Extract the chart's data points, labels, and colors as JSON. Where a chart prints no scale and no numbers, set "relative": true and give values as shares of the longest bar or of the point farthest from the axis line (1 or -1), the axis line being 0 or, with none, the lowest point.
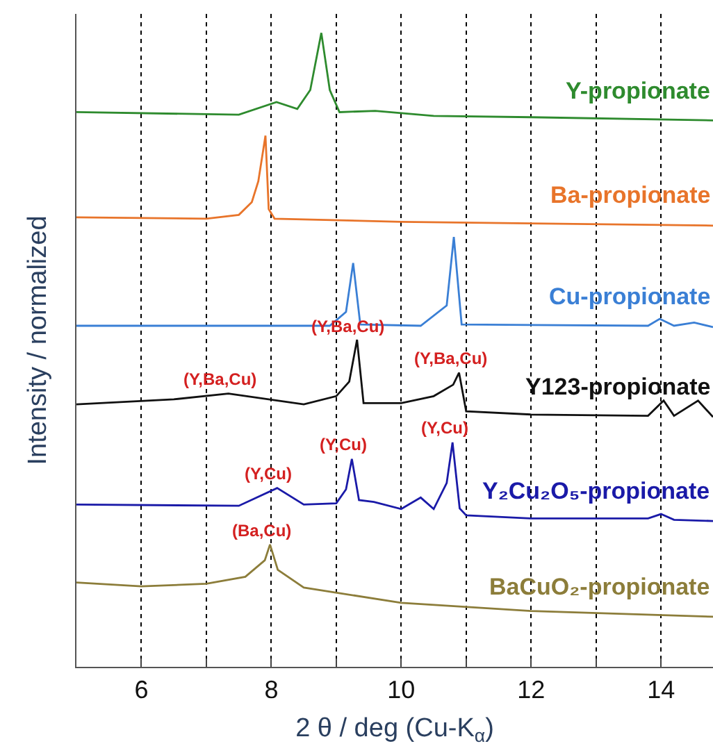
{
  "chart_data": {
    "type": "line",
    "relative": true,
    "xlabel": "2 θ / deg (Cu-K$_{α}$)",
    "ylabel": "Intensity / normalized",
    "xlim": [
      5,
      14.8
    ],
    "xticks": [
      6,
      {
        "value": 7,
        "label": null
      },
      8,
      {
        "value": 9,
        "label": null
      },
      10,
      {
        "value": 11,
        "label": null
      },
      12,
      {
        "value": 13,
        "label": null
      },
      14
    ],
    "grid": "x",
    "legend": false,
    "tick_labels": "x",
    "marker": "none",
    "line_style": "solid",
    "series": [
      {
        "name": "Y-propionate",
        "color": "#2e8b2e",
        "x": [
          5,
          7.5,
          8.08,
          8.4,
          8.6,
          8.77,
          8.9,
          9.05,
          9.6,
          10.5,
          12,
          14.8
        ],
        "values": [
          0.875,
          0.871,
          0.891,
          0.88,
          0.91,
          1.0,
          0.91,
          0.875,
          0.877,
          0.869,
          0.867,
          0.862
        ]
      },
      {
        "name": "Ba-propionate",
        "color": "#e8742a",
        "x": [
          5,
          7,
          7.5,
          7.7,
          7.8,
          7.91,
          7.96,
          8.05,
          10,
          14.8
        ],
        "values": [
          0.709,
          0.707,
          0.713,
          0.733,
          0.766,
          0.838,
          0.722,
          0.707,
          0.702,
          0.696
        ]
      },
      {
        "name": "Cu-propionate",
        "color": "#3a7fd5",
        "x": [
          5,
          8.9,
          9.15,
          9.26,
          9.37,
          10.3,
          10.7,
          10.81,
          10.93,
          13.8,
          13.98,
          14.2,
          14.51,
          14.8
        ],
        "values": [
          0.538,
          0.538,
          0.56,
          0.637,
          0.54,
          0.538,
          0.57,
          0.678,
          0.54,
          0.538,
          0.549,
          0.538,
          0.543,
          0.536
        ]
      },
      {
        "name": "Y123-propionate",
        "color": "#111111",
        "x": [
          5,
          6.5,
          7.34,
          8.5,
          9.0,
          9.2,
          9.32,
          9.42,
          10.0,
          10.5,
          10.8,
          10.89,
          11.0,
          12,
          13.8,
          14.04,
          14.2,
          14.57,
          14.8
        ],
        "values": [
          0.414,
          0.422,
          0.431,
          0.414,
          0.427,
          0.45,
          0.516,
          0.416,
          0.416,
          0.427,
          0.445,
          0.464,
          0.403,
          0.398,
          0.396,
          0.42,
          0.396,
          0.42,
          0.394
        ]
      },
      {
        "name": "Y₂Cu₂O₅-propionate",
        "color": "#1a1aa8",
        "x": [
          5,
          7.5,
          8.09,
          8.5,
          9.0,
          9.15,
          9.24,
          9.35,
          9.58,
          10.0,
          10.3,
          10.5,
          10.7,
          10.79,
          10.9,
          11,
          12,
          13.8,
          14,
          14.2,
          14.8
        ],
        "values": [
          0.256,
          0.254,
          0.282,
          0.256,
          0.258,
          0.28,
          0.328,
          0.263,
          0.26,
          0.249,
          0.267,
          0.249,
          0.29,
          0.354,
          0.25,
          0.239,
          0.234,
          0.234,
          0.241,
          0.232,
          0.23
        ]
      },
      {
        "name": "BaCuO₂-propionate",
        "color": "#8c7d3a",
        "x": [
          5,
          6,
          7,
          7.6,
          7.9,
          7.98,
          8.1,
          8.5,
          10,
          12,
          14.8
        ],
        "values": [
          0.133,
          0.127,
          0.131,
          0.142,
          0.168,
          0.193,
          0.153,
          0.125,
          0.101,
          0.088,
          0.079
        ]
      }
    ],
    "annotations": [
      {
        "text": "(Y,Ba,Cu)",
        "x": 7.34,
        "y": 0.431
      },
      {
        "text": "(Y,Ba,Cu)",
        "x": 9.32,
        "y": 0.516
      },
      {
        "text": "(Y,Ba,Cu)",
        "x": 10.89,
        "y": 0.464
      },
      {
        "text": "(Y,Cu)",
        "x": 8.09,
        "y": 0.282
      },
      {
        "text": "(Y,Cu)",
        "x": 9.24,
        "y": 0.328
      },
      {
        "text": "(Y,Cu)",
        "x": 10.79,
        "y": 0.354
      },
      {
        "text": "(Ba,Cu)",
        "x": 7.98,
        "y": 0.193
      }
    ]
  }
}
